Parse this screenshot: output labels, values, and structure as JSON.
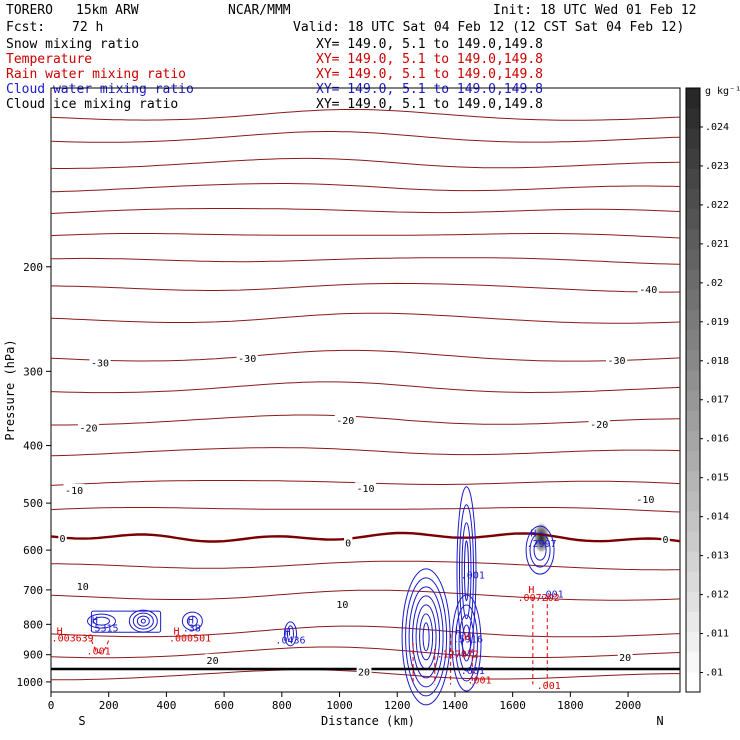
{
  "header": {
    "model": "TORERO",
    "grid": "15km ARW",
    "center": "NCAR/MMM",
    "init": "Init: 18 UTC Wed 01 Feb 12",
    "fcst_label": "Fcst:",
    "fcst_value": "72 h",
    "valid": "Valid: 18 UTC Sat 04 Feb 12 (12 CST Sat 04 Feb 12)"
  },
  "legend": [
    {
      "label": "Snow mixing ratio",
      "xy": "XY= 149.0,  5.1 to 149.0,149.8",
      "color": "#000000"
    },
    {
      "label": "Temperature",
      "xy": "XY= 149.0,  5.1 to 149.0,149.8",
      "color": "#cc0000"
    },
    {
      "label": "Rain water mixing ratio",
      "xy": "XY= 149.0,  5.1 to 149.0,149.8",
      "color": "#cc0000"
    },
    {
      "label": "Cloud water mixing ratio",
      "xy": "XY= 149.0,  5.1 to 149.0,149.8",
      "color": "#1a1acc"
    },
    {
      "label": "Cloud ice mixing ratio",
      "xy": "XY= 149.0,  5.1 to 149.0,149.8",
      "color": "#000000"
    }
  ],
  "chart_data": {
    "type": "contour-cross-section",
    "xlabel": "Distance (km)",
    "ylabel": "Pressure (hPa)",
    "xlim": [
      0,
      2180
    ],
    "ylim": [
      1040,
      100
    ],
    "y_scale": "log",
    "x_ticks": [
      0,
      200,
      400,
      600,
      800,
      1000,
      1200,
      1400,
      1600,
      1800,
      2000
    ],
    "y_ticks": [
      200,
      300,
      400,
      500,
      600,
      700,
      800,
      900,
      1000
    ],
    "endpoints": {
      "left": "S",
      "right": "N"
    },
    "colorbar": {
      "unit": "g kg⁻¹",
      "ticks": [
        ".024",
        ".023",
        ".022",
        ".021",
        ".02",
        ".019",
        ".018",
        ".017",
        ".016",
        ".015",
        ".014",
        ".013",
        ".012",
        ".011",
        ".01"
      ],
      "range": [
        0.0095,
        0.025
      ]
    },
    "temperature_contours": {
      "interval": 5,
      "color": "#8b1a1a",
      "zero_color": "#7a0000",
      "lines": [
        {
          "T": -60,
          "p": 112
        },
        {
          "T": -60,
          "p": 122
        },
        {
          "T": -55,
          "p": 135
        },
        {
          "T": -55,
          "p": 148
        },
        {
          "T": -50,
          "p": 162
        },
        {
          "T": -50,
          "p": 178
        },
        {
          "T": -45,
          "p": 196
        },
        {
          "T": -40,
          "p": 218
        },
        {
          "T": -35,
          "p": 246
        },
        {
          "T": -30,
          "p": 285
        },
        {
          "T": -25,
          "p": 322
        },
        {
          "T": -20,
          "p": 365
        },
        {
          "T": -15,
          "p": 412
        },
        {
          "T": -10,
          "p": 465
        },
        {
          "T": -5,
          "p": 515
        },
        {
          "T": 0,
          "p": 575
        },
        {
          "T": 5,
          "p": 640
        },
        {
          "T": 10,
          "p": 720
        },
        {
          "T": 15,
          "p": 830
        },
        {
          "T": 20,
          "p": 900
        },
        {
          "T": 25,
          "p": 980
        }
      ],
      "labels": [
        {
          "text": "-40",
          "x": 2070,
          "p": 218
        },
        {
          "text": "-30",
          "x": 170,
          "p": 290
        },
        {
          "text": "-30",
          "x": 680,
          "p": 285
        },
        {
          "text": "-30",
          "x": 1960,
          "p": 287
        },
        {
          "text": "-20",
          "x": 130,
          "p": 373
        },
        {
          "text": "-20",
          "x": 1020,
          "p": 362
        },
        {
          "text": "-20",
          "x": 1900,
          "p": 368
        },
        {
          "text": "-10",
          "x": 80,
          "p": 475
        },
        {
          "text": "-10",
          "x": 1090,
          "p": 472
        },
        {
          "text": "-10",
          "x": 2060,
          "p": 492
        },
        {
          "text": "0",
          "x": 40,
          "p": 572
        },
        {
          "text": "0",
          "x": 1030,
          "p": 582
        },
        {
          "text": "0",
          "x": 2130,
          "p": 575
        },
        {
          "text": "10",
          "x": 110,
          "p": 690
        },
        {
          "text": "10",
          "x": 1010,
          "p": 740
        },
        {
          "text": "20",
          "x": 560,
          "p": 918
        },
        {
          "text": "20",
          "x": 1085,
          "p": 960
        },
        {
          "text": "20",
          "x": 1990,
          "p": 908
        }
      ]
    },
    "cloud_water": {
      "color": "#1a1acc",
      "labels": [
        {
          "text": "H",
          "x": 152,
          "p": 785
        },
        {
          "text": ".5315",
          "x": 182,
          "p": 810
        },
        {
          "text": "H",
          "x": 485,
          "p": 785
        },
        {
          "text": ".38",
          "x": 488,
          "p": 810
        },
        {
          "text": "H",
          "x": 820,
          "p": 822
        },
        {
          "text": ".0436",
          "x": 830,
          "p": 848
        },
        {
          "text": "H",
          "x": 1412,
          "p": 820
        },
        {
          "text": ".5916",
          "x": 1445,
          "p": 845
        },
        {
          "text": ".001",
          "x": 1462,
          "p": 660
        },
        {
          "text": ".001",
          "x": 1462,
          "p": 955
        },
        {
          "text": "H",
          "x": 1672,
          "p": 560
        },
        {
          "text": ".2997",
          "x": 1700,
          "p": 584
        },
        {
          "text": ".001",
          "x": 1735,
          "p": 710
        }
      ]
    },
    "rain_water": {
      "color": "#dd0000",
      "labels": [
        {
          "text": "H",
          "x": 30,
          "p": 820
        },
        {
          "text": ".003639",
          "x": 75,
          "p": 842
        },
        {
          "text": ".001",
          "x": 165,
          "p": 885
        },
        {
          "text": "H",
          "x": 435,
          "p": 820
        },
        {
          "text": ".000501",
          "x": 482,
          "p": 842
        },
        {
          "text": "H",
          "x": 1442,
          "p": 838
        },
        {
          "text": ".127072",
          "x": 1410,
          "p": 895
        },
        {
          "text": ".001",
          "x": 1485,
          "p": 990
        },
        {
          "text": "H",
          "x": 1665,
          "p": 698
        },
        {
          "text": ".007202",
          "x": 1690,
          "p": 720
        },
        {
          "text": ".001",
          "x": 1725,
          "p": 1012
        }
      ]
    },
    "snow": {
      "color": "#000000",
      "max_center": {
        "x": 1700,
        "p": 572,
        "value": 0.022
      }
    }
  }
}
